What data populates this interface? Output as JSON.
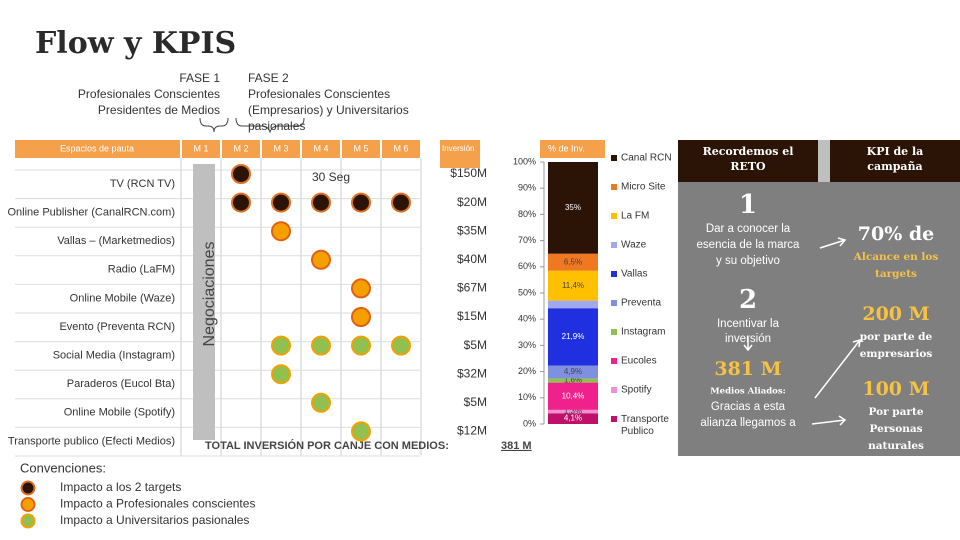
{
  "title": "Flow y KPIS",
  "phases": [
    {
      "label": "FASE 1",
      "lines": [
        "Profesionales Conscientes",
        "Presidentes de Medios"
      ]
    },
    {
      "label": "FASE 2",
      "lines": [
        "Profesionales Conscientes",
        "(Empresarios) y Universitarios",
        "pasionales"
      ]
    }
  ],
  "table": {
    "header": "Espacios de pauta",
    "months": [
      "M 1",
      "M 2",
      "M 3",
      "M 4",
      "M 5",
      "M 6"
    ],
    "investment_header": "Inversión",
    "negotiation": "Negociaciones",
    "note": "30 Seg",
    "rows": [
      {
        "name": "TV (RCN TV)",
        "investment": "$150M"
      },
      {
        "name": "Online Publisher (CanalRCN.com)",
        "investment": "$20M"
      },
      {
        "name": "Vallas – (Marketmedios)",
        "investment": "$35M"
      },
      {
        "name": "Radio (LaFM)",
        "investment": "$40M"
      },
      {
        "name": "Online Mobile (Waze)",
        "investment": "$67M"
      },
      {
        "name": "Evento (Preventa RCN)",
        "investment": "$15M"
      },
      {
        "name": "Social Media (Instagram)",
        "investment": "$5M"
      },
      {
        "name": "Paraderos (Eucol Bta)",
        "investment": "$32M"
      },
      {
        "name": "Online Mobile (Spotify)",
        "investment": "$5M"
      },
      {
        "name": "Transporte publico (Efecti Medios)",
        "investment": "$12M"
      }
    ],
    "total_label": "TOTAL INVERSIÓN POR CANJE CON MEDIOS:",
    "total_value": "381 M"
  },
  "conventions": {
    "title": "Convenciones:",
    "items": [
      "Impacto a los 2 targets",
      "Impacto a Profesionales conscientes",
      "Impacto a Universitarios pasionales"
    ]
  },
  "chart_data": {
    "type": "bar",
    "stacked": true,
    "title": "% de Inv.",
    "ylim": [
      0,
      100
    ],
    "yticks": [
      {
        "value": 0,
        "label": "0%"
      },
      {
        "value": 10,
        "label": "10%"
      },
      {
        "value": 20,
        "label": "20%"
      },
      {
        "value": 30,
        "label": "30%"
      },
      {
        "value": 40,
        "label": "40%"
      },
      {
        "value": 50,
        "label": "50%"
      },
      {
        "value": 60,
        "label": "60%"
      },
      {
        "value": 70,
        "label": "70%"
      },
      {
        "value": 80,
        "label": "80%"
      },
      {
        "value": 90,
        "label": "90%"
      },
      {
        "value": 100,
        "label": "100%"
      }
    ],
    "series": [
      {
        "name": "Canal RCN",
        "color": "#2b1406",
        "values": [
          35
        ],
        "value_labels": [
          "35%"
        ]
      },
      {
        "name": "Micro Site",
        "color": "#f07820",
        "values": [
          6.5
        ],
        "value_labels": [
          "6,5%"
        ]
      },
      {
        "name": "La FM",
        "color": "#ffc000",
        "values": [
          11.4
        ],
        "value_labels": [
          "11,4%"
        ]
      },
      {
        "name": "Waze",
        "color": "#a0a8f0",
        "values": [
          2.9
        ],
        "value_labels": [
          null
        ]
      },
      {
        "name": "Vallas",
        "color": "#2030e0",
        "values": [
          21.9
        ],
        "value_labels": [
          "21,9%"
        ]
      },
      {
        "name": "Preventa",
        "color": "#8090e0",
        "values": [
          4.9
        ],
        "value_labels": [
          "4,9%"
        ]
      },
      {
        "name": "Instagram",
        "color": "#92c050",
        "values": [
          1.6
        ],
        "value_labels": [
          "1,6%"
        ]
      },
      {
        "name": "Eucoles",
        "color": "#f0208c",
        "values": [
          10.4
        ],
        "value_labels": [
          "10,4%"
        ]
      },
      {
        "name": "Spotify",
        "color": "#f090d0",
        "values": [
          1.3
        ],
        "value_labels": [
          "1,3%"
        ]
      },
      {
        "name": "Transporte Publico",
        "color": "#c0106a",
        "values": [
          4.1
        ],
        "value_labels": [
          "4,1%"
        ]
      }
    ]
  },
  "panel": {
    "header_left": [
      "Recordemos el",
      "RETO"
    ],
    "header_right": [
      "KPI de la",
      "campaña"
    ],
    "step1": "1",
    "step1_lines": [
      "Dar a conocer la",
      "esencia de la marca",
      "y su objetivo"
    ],
    "step2": "2",
    "step2_lines": [
      "Incentivar la",
      "inversión"
    ],
    "reach": "381 M",
    "reach_caption": "Medios Aliados:",
    "reach_lines": [
      "Gracias a esta",
      "alianza llegamos a"
    ],
    "kpi1": "70% de",
    "kpi1_lines": [
      "Alcance en los",
      "targets"
    ],
    "kpi2": "200 M",
    "kpi2_lines": [
      "por parte de",
      "empresarios"
    ],
    "kpi3": "100 M",
    "kpi3_lines": [
      "Por parte",
      "Personas",
      "naturales"
    ]
  }
}
